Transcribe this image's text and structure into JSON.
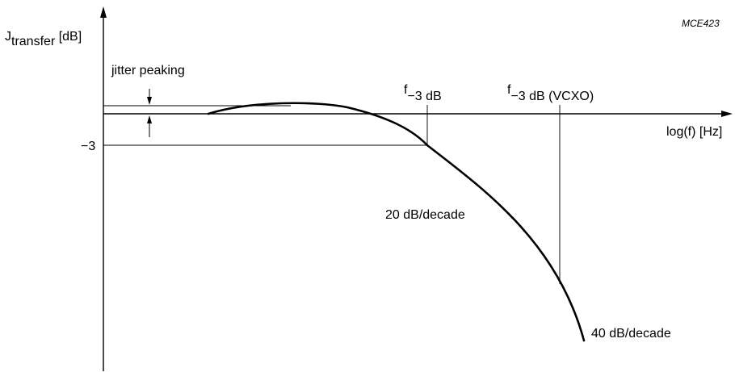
{
  "figure": {
    "code": "MCE423",
    "y_label": {
      "symbol": "J",
      "subscript": "transfer",
      "unit": " [dB]"
    },
    "x_label": "log(f) [Hz]",
    "minus3_label": "−3",
    "jitter_peaking_label": "jitter peaking",
    "f3db_label": {
      "symbol": "f",
      "subscript": "−3 dB"
    },
    "f3db_vcxo_label": {
      "symbol": "f",
      "subscript": "−3 dB (VCXO)"
    },
    "slope1_label": "20 dB/decade",
    "slope2_label": "40 dB/decade",
    "colors": {
      "ink": "#000000",
      "background": "#ffffff"
    }
  }
}
